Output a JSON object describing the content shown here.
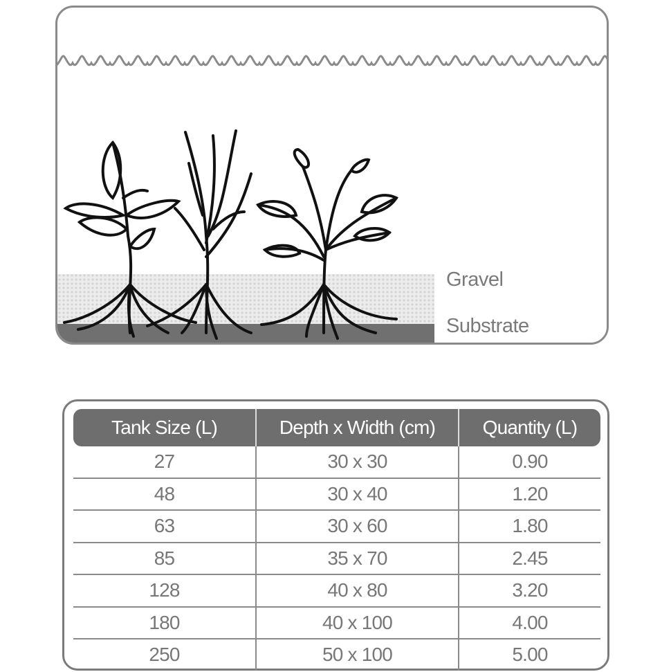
{
  "diagram": {
    "labels": {
      "gravel": "Gravel",
      "substrate": "Substrate"
    },
    "colors": {
      "substrate": "#707070",
      "gravel": "#e4e4e4",
      "outline": "#8a8a8a"
    }
  },
  "table": {
    "headers": [
      "Tank Size (L)",
      "Depth x Width (cm)",
      "Quantity (L)"
    ],
    "rows": [
      [
        "27",
        "30 x 30",
        "0.90"
      ],
      [
        "48",
        "30 x 40",
        "1.20"
      ],
      [
        "63",
        "30 x 60",
        "1.80"
      ],
      [
        "85",
        "35 x 70",
        "2.45"
      ],
      [
        "128",
        "40 x 80",
        "3.20"
      ],
      [
        "180",
        "40 x 100",
        "4.00"
      ],
      [
        "250",
        "50 x 100",
        "5.00"
      ]
    ]
  }
}
